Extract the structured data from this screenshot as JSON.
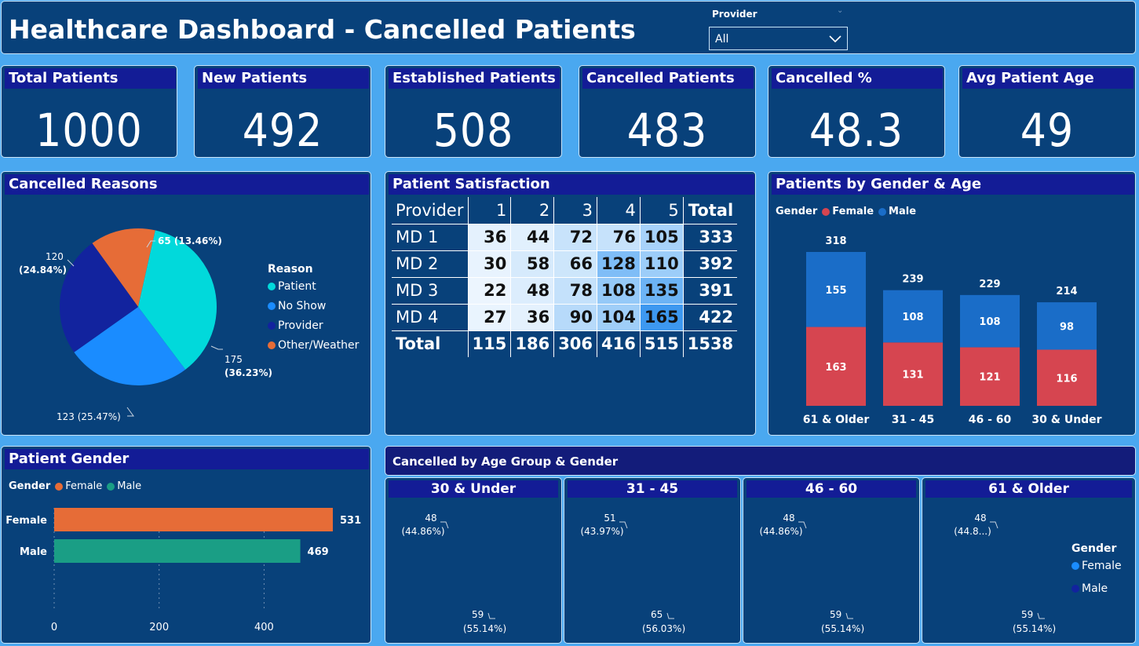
{
  "header": {
    "title": "Healthcare Dashboard - Cancelled Patients",
    "filter_label": "Provider",
    "filter_value": "All"
  },
  "kpis": [
    {
      "label": "Total Patients",
      "value": "1000"
    },
    {
      "label": "New Patients",
      "value": "492"
    },
    {
      "label": "Established Patients",
      "value": "508"
    },
    {
      "label": "Cancelled Patients",
      "value": "483"
    },
    {
      "label": "Cancelled %",
      "value": "48.3"
    },
    {
      "label": "Avg Patient Age",
      "value": "49"
    }
  ],
  "reasons": {
    "title": "Cancelled Reasons",
    "legend_title": "Reason",
    "labels": [
      "Patient",
      "No Show",
      "Provider",
      "Other/Weather"
    ],
    "colors": [
      "#01d9db",
      "#1a8cff",
      "#12239e",
      "#e66c37"
    ]
  },
  "satisfaction": {
    "title": "Patient Satisfaction",
    "header": [
      "Provider",
      "1",
      "2",
      "3",
      "4",
      "5",
      "Total"
    ],
    "rows": [
      {
        "label": "MD 1",
        "cells": [
          "36",
          "44",
          "72",
          "76",
          "105"
        ],
        "total": "333"
      },
      {
        "label": "MD 2",
        "cells": [
          "30",
          "58",
          "66",
          "128",
          "110"
        ],
        "total": "392"
      },
      {
        "label": "MD 3",
        "cells": [
          "22",
          "48",
          "78",
          "108",
          "135"
        ],
        "total": "391"
      },
      {
        "label": "MD 4",
        "cells": [
          "27",
          "36",
          "90",
          "104",
          "165"
        ],
        "total": "422"
      }
    ],
    "total_row": {
      "label": "Total",
      "cells": [
        "115",
        "186",
        "306",
        "416",
        "515"
      ],
      "total": "1538"
    },
    "cell_colors": [
      [
        "#e4f1fd",
        "#e1f0fd",
        "#c8e3fb",
        "#c6e2fb",
        "#a7d2fa"
      ],
      [
        "#e8f3fe",
        "#d6eafc",
        "#cde6fb",
        "#7fbdf7",
        "#9ccdf9"
      ],
      [
        "#ecf5fe",
        "#dcedfd",
        "#c4e1fb",
        "#95c9f8",
        "#6cb3f5"
      ],
      [
        "#e9f4fe",
        "#e4f1fd",
        "#b7dafa",
        "#9fcef8",
        "#3d98f0"
      ]
    ]
  },
  "gender_age": {
    "title": "Patients by Gender & Age",
    "legend_title": "Gender",
    "legend": [
      "Female",
      "Male"
    ],
    "female_color": "#d64550",
    "male_color": "#1a6dc8"
  },
  "patient_gender": {
    "title": "Patient Gender",
    "legend_title": "Gender",
    "legend": [
      "Female",
      "Male"
    ],
    "colors": [
      "#e66c37",
      "#1a9e85"
    ]
  },
  "cancelled_by_age": {
    "title": "Cancelled by Age Group & Gender",
    "legend_title": "Gender",
    "legend": [
      "Female",
      "Male"
    ],
    "colors": {
      "female": "#1a8cff",
      "male": "#12239e"
    },
    "groups": [
      {
        "name": "30 & Under",
        "male_label": "48",
        "male_pct": "(44.86%)",
        "female_label": "59",
        "female_pct": "(55.14%)"
      },
      {
        "name": "31 - 45",
        "male_label": "51",
        "male_pct": "(43.97%)",
        "female_label": "65",
        "female_pct": "(56.03%)"
      },
      {
        "name": "46 - 60",
        "male_label": "48",
        "male_pct": "(44.86%)",
        "female_label": "59",
        "female_pct": "(55.14%)"
      },
      {
        "name": "61 & Older",
        "male_label": "48",
        "male_pct": "(44.8...)",
        "female_label": "59",
        "female_pct": "(55.14%)"
      }
    ]
  },
  "chart_data": [
    {
      "type": "pie",
      "title": "Cancelled Reasons",
      "categories": [
        "Patient",
        "No Show",
        "Provider",
        "Other/Weather"
      ],
      "values": [
        175,
        123,
        120,
        65
      ],
      "percent_labels": [
        "(36.23%)",
        "(25.47%)",
        "(24.84%)",
        "(13.46%)"
      ],
      "legend_position": "right"
    },
    {
      "type": "bar",
      "title": "Patients by Gender & Age",
      "categories": [
        "61 & Older",
        "31 - 45",
        "46 - 60",
        "30 & Under"
      ],
      "series": [
        {
          "name": "Female",
          "values": [
            163,
            131,
            121,
            116
          ]
        },
        {
          "name": "Male",
          "values": [
            155,
            108,
            108,
            98
          ]
        }
      ],
      "totals": [
        318,
        239,
        229,
        214
      ],
      "stacked": true,
      "legend_position": "top-left"
    },
    {
      "type": "bar",
      "title": "Patient Gender",
      "orientation": "horizontal",
      "categories": [
        "Female",
        "Male"
      ],
      "values": [
        531,
        469
      ],
      "x_ticks": [
        0,
        200,
        400
      ],
      "xlim": [
        0,
        531
      ],
      "grid": true
    },
    {
      "type": "pie",
      "title": "Cancelled by Age Group & Gender",
      "donut": true,
      "groups": [
        "30 & Under",
        "31 - 45",
        "46 - 60",
        "61 & Older"
      ],
      "series": [
        {
          "name": "Female",
          "values": [
            59,
            65,
            59,
            59
          ]
        },
        {
          "name": "Male",
          "values": [
            48,
            51,
            48,
            48
          ]
        }
      ]
    }
  ]
}
